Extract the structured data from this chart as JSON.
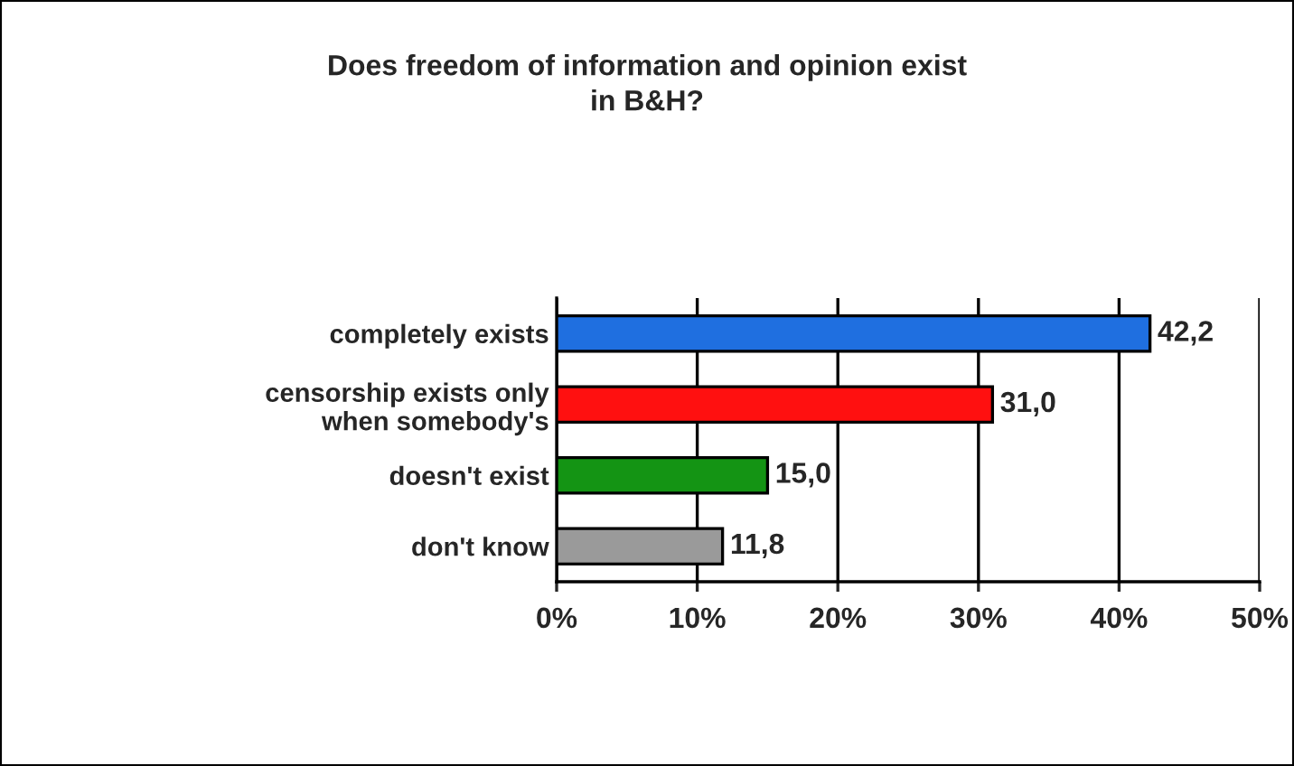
{
  "chart_data": {
    "type": "bar",
    "orientation": "horizontal",
    "title": "Does freedom of information and opinion exist\nin B&H?",
    "categories": [
      "completely exists",
      "censorship exists only\nwhen somebody's",
      "doesn't exist",
      "don't know"
    ],
    "values": [
      42.2,
      31.0,
      15.0,
      11.8
    ],
    "value_labels": [
      "42,2",
      "31,0",
      "15,0",
      "11,8"
    ],
    "colors": [
      "#1f6fe0",
      "#ff1010",
      "#149414",
      "#9a9a9a"
    ],
    "xlim": [
      0,
      50
    ],
    "xticks": [
      {
        "value": 0,
        "label": "0%"
      },
      {
        "value": 10,
        "label": "10%"
      },
      {
        "value": 20,
        "label": "20%"
      },
      {
        "value": 30,
        "label": "30%"
      },
      {
        "value": 40,
        "label": "40%"
      },
      {
        "value": 50,
        "label": "50%"
      }
    ],
    "grid": "x",
    "legend": false
  }
}
